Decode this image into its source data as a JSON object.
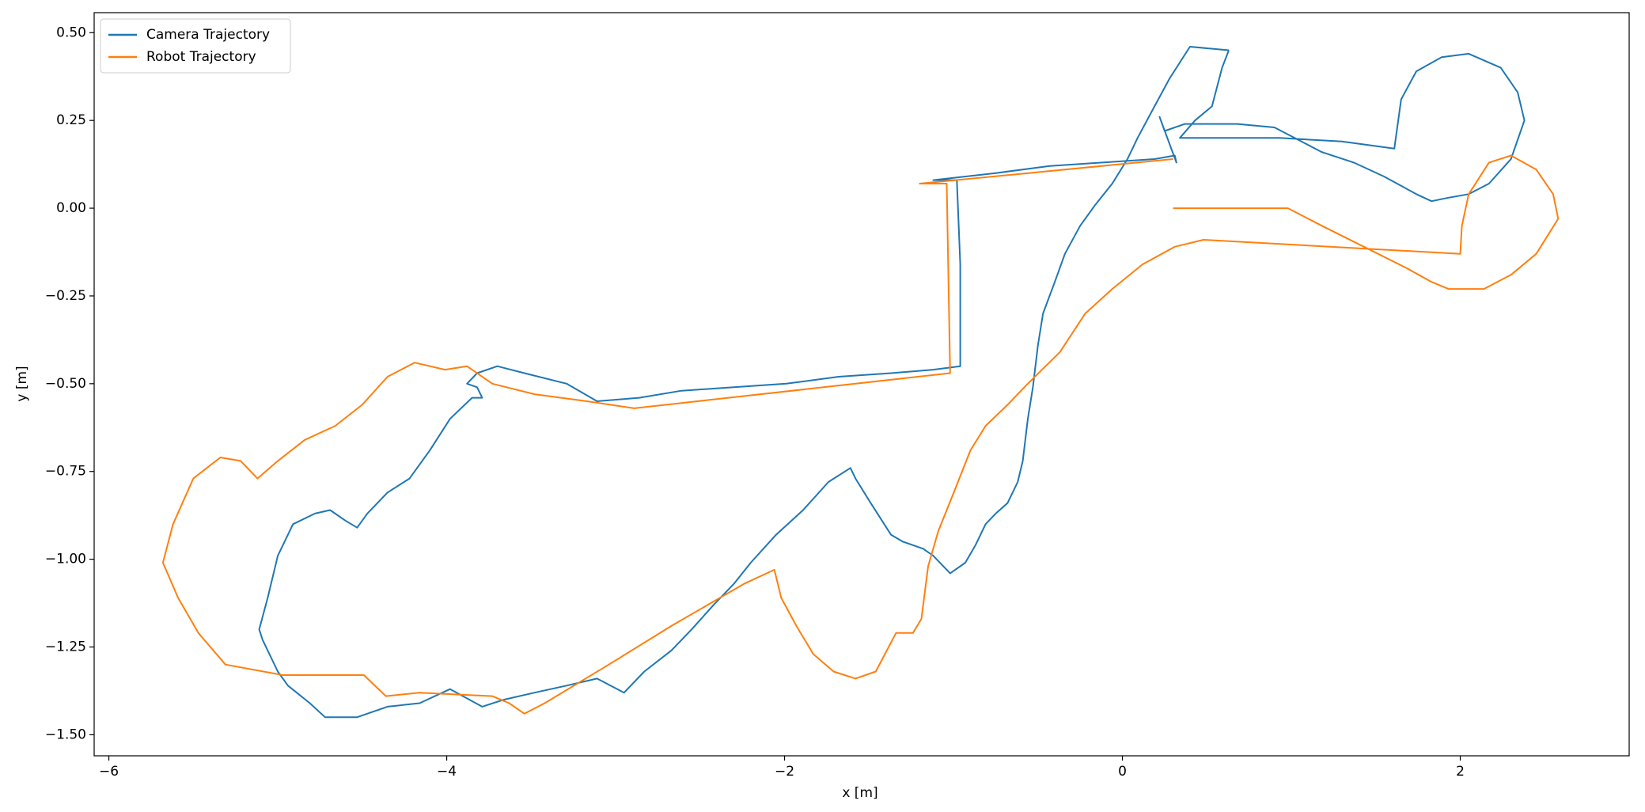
{
  "chart_data": {
    "type": "line",
    "xlabel": "x [m]",
    "ylabel": "y [m]",
    "xlim": [
      -6.087,
      3.0
    ],
    "ylim": [
      -1.56,
      0.557
    ],
    "xticks": [
      {
        "value": -6,
        "label": "−6"
      },
      {
        "value": -4,
        "label": "−4"
      },
      {
        "value": -2,
        "label": "−2"
      },
      0,
      2
    ],
    "yticks": [
      {
        "value": 0.5,
        "label": "0.50"
      },
      {
        "value": 0.25,
        "label": "0.25"
      },
      {
        "value": 0,
        "label": "0.00"
      },
      {
        "value": -0.25,
        "label": "−0.25"
      },
      {
        "value": -0.5,
        "label": "−0.50"
      },
      {
        "value": -0.75,
        "label": "−0.75"
      },
      {
        "value": -1,
        "label": "−1.00"
      },
      {
        "value": -1.25,
        "label": "−1.25"
      },
      {
        "value": -1.5,
        "label": "−1.50"
      }
    ],
    "legend": "upper left",
    "series": [
      {
        "name": "Camera Trajectory",
        "color": "#1f77b4",
        "x": [
          0.63,
          0.4,
          0.28,
          0.19,
          0.09,
          0.03,
          -0.06,
          -0.16,
          -0.25,
          -0.34,
          -0.4,
          -0.47,
          -0.5,
          -0.53,
          -0.56,
          -0.59,
          -0.62,
          -0.68,
          -0.75,
          -0.81,
          -0.87,
          -0.93,
          -1.02,
          -1.12,
          -1.18,
          -1.3,
          -1.37,
          -1.49,
          -1.58,
          -1.61,
          -1.74,
          -1.89,
          -2.05,
          -2.2,
          -2.3,
          -2.42,
          -2.55,
          -2.67,
          -2.83,
          -2.95,
          -3.11,
          -3.29,
          -3.48,
          -3.66,
          -3.79,
          -3.98,
          -4.16,
          -4.35,
          -4.53,
          -4.72,
          -4.81,
          -4.94,
          -5.0,
          -5.09,
          -5.11,
          -5.06,
          -5.0,
          -4.91,
          -4.78,
          -4.69,
          -4.6,
          -4.53,
          -4.47,
          -4.35,
          -4.22,
          -4.1,
          -3.98,
          -3.85,
          -3.79,
          -3.82,
          -3.88,
          -3.82,
          -3.7,
          -3.54,
          -3.29,
          -3.11,
          -2.86,
          -2.61,
          -2.3,
          -1.99,
          -1.68,
          -1.37,
          -1.12,
          -0.96,
          -0.96,
          -0.98,
          -1.12,
          -0.75,
          -0.43,
          -0.12,
          0.19,
          0.31,
          0.32,
          0.22,
          0.25,
          0.37,
          0.68,
          0.9,
          1.06,
          1.18,
          1.37,
          1.55,
          1.74,
          1.83,
          1.93,
          2.05,
          2.17,
          2.3,
          2.38,
          2.34,
          2.24,
          2.05,
          1.89,
          1.74,
          1.65,
          1.61,
          1.3,
          0.93,
          0.43,
          0.34,
          0.43,
          0.53,
          0.59,
          0.63
        ],
        "values": [
          0.45,
          0.46,
          0.37,
          0.29,
          0.2,
          0.14,
          0.07,
          0.01,
          -0.05,
          -0.13,
          -0.21,
          -0.3,
          -0.39,
          -0.51,
          -0.6,
          -0.72,
          -0.78,
          -0.84,
          -0.87,
          -0.9,
          -0.96,
          -1.01,
          -1.04,
          -0.99,
          -0.97,
          -0.95,
          -0.93,
          -0.84,
          -0.77,
          -0.74,
          -0.78,
          -0.86,
          -0.93,
          -1.01,
          -1.07,
          -1.13,
          -1.2,
          -1.26,
          -1.32,
          -1.38,
          -1.34,
          -1.36,
          -1.38,
          -1.4,
          -1.42,
          -1.37,
          -1.41,
          -1.42,
          -1.45,
          -1.45,
          -1.41,
          -1.36,
          -1.32,
          -1.23,
          -1.2,
          -1.11,
          -0.99,
          -0.9,
          -0.87,
          -0.86,
          -0.89,
          -0.91,
          -0.87,
          -0.81,
          -0.77,
          -0.69,
          -0.6,
          -0.54,
          -0.54,
          -0.51,
          -0.5,
          -0.47,
          -0.45,
          -0.47,
          -0.5,
          -0.55,
          -0.54,
          -0.52,
          -0.51,
          -0.5,
          -0.48,
          -0.47,
          -0.46,
          -0.45,
          -0.16,
          0.08,
          0.08,
          0.1,
          0.12,
          0.13,
          0.14,
          0.15,
          0.13,
          0.26,
          0.22,
          0.24,
          0.24,
          0.23,
          0.19,
          0.16,
          0.13,
          0.09,
          0.04,
          0.02,
          0.03,
          0.04,
          0.07,
          0.14,
          0.25,
          0.33,
          0.4,
          0.44,
          0.43,
          0.39,
          0.31,
          0.17,
          0.19,
          0.2,
          0.2,
          0.2,
          0.25,
          0.29,
          0.4,
          0.45
        ]
      },
      {
        "name": "Robot Trajectory",
        "color": "#ff7f0e",
        "x": [
          0.3,
          0.98,
          1.18,
          1.43,
          1.68,
          1.83,
          1.93,
          2.14,
          2.3,
          2.45,
          2.58,
          2.55,
          2.45,
          2.3,
          2.17,
          2.05,
          2.01,
          2.0,
          0.48,
          0.31,
          0.12,
          -0.06,
          -0.22,
          -0.37,
          -0.56,
          -0.68,
          -0.81,
          -0.9,
          -0.99,
          -1.09,
          -1.15,
          -1.19,
          -1.24,
          -1.34,
          -1.46,
          -1.58,
          -1.71,
          -1.83,
          -1.93,
          -2.02,
          -2.06,
          -2.24,
          -2.67,
          -3.04,
          -3.42,
          -3.54,
          -3.63,
          -3.73,
          -4.16,
          -4.36,
          -4.49,
          -4.72,
          -4.97,
          -5.31,
          -5.47,
          -5.59,
          -5.68,
          -5.62,
          -5.5,
          -5.34,
          -5.22,
          -5.12,
          -5.0,
          -4.84,
          -4.66,
          -4.5,
          -4.35,
          -4.19,
          -4.01,
          -3.88,
          -3.73,
          -3.48,
          -3.17,
          -2.89,
          -1.02,
          -1.04,
          -1.2,
          0.3
        ],
        "values": [
          0,
          0,
          -0.05,
          -0.11,
          -0.17,
          -0.21,
          -0.23,
          -0.23,
          -0.19,
          -0.13,
          -0.03,
          0.04,
          0.11,
          0.15,
          0.13,
          0.04,
          -0.05,
          -0.13,
          -0.09,
          -0.11,
          -0.16,
          -0.23,
          -0.3,
          -0.41,
          -0.5,
          -0.56,
          -0.62,
          -0.69,
          -0.8,
          -0.92,
          -1.02,
          -1.17,
          -1.21,
          -1.21,
          -1.32,
          -1.34,
          -1.32,
          -1.27,
          -1.19,
          -1.11,
          -1.03,
          -1.07,
          -1.19,
          -1.3,
          -1.41,
          -1.44,
          -1.41,
          -1.39,
          -1.38,
          -1.39,
          -1.33,
          -1.33,
          -1.33,
          -1.3,
          -1.21,
          -1.11,
          -1.01,
          -0.9,
          -0.77,
          -0.71,
          -0.72,
          -0.77,
          -0.72,
          -0.66,
          -0.62,
          -0.56,
          -0.48,
          -0.44,
          -0.46,
          -0.45,
          -0.5,
          -0.53,
          -0.55,
          -0.57,
          -0.47,
          0.07,
          0.07,
          0.14
        ]
      }
    ]
  }
}
